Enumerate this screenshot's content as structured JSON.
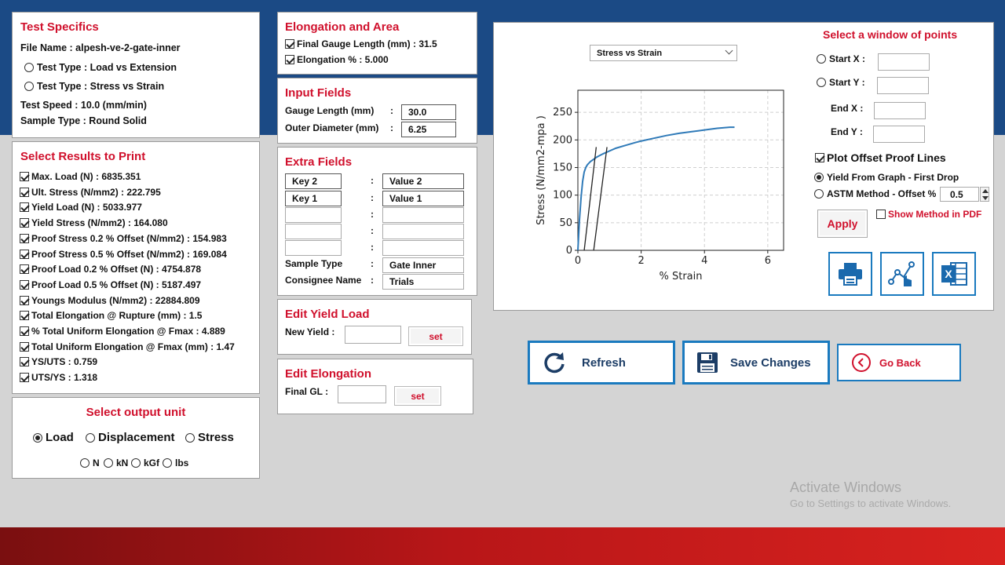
{
  "test_specifics": {
    "title": "Test Specifics",
    "file_name": "File Name : alpesh-ve-2-gate-inner",
    "test_type_load": "Test Type : Load vs Extension",
    "test_type_stress": "Test Type : Stress vs Strain",
    "test_speed": "Test Speed : 10.0 (mm/min)",
    "sample_type": "Sample Type : Round Solid"
  },
  "results": {
    "title": "Select Results to Print",
    "items": [
      {
        "label": "Max. Load (N) : 6835.351",
        "checked": true
      },
      {
        "label": "Ult. Stress (N/mm2) : 222.795",
        "checked": true
      },
      {
        "label": "Yield Load (N) : 5033.977",
        "checked": true
      },
      {
        "label": "Yield Stress (N/mm2) : 164.080",
        "checked": true
      },
      {
        "label": "Proof Stress 0.2 % Offset (N/mm2) : 154.983",
        "checked": true
      },
      {
        "label": "Proof Stress 0.5 % Offset (N/mm2) : 169.084",
        "checked": true
      },
      {
        "label": "Proof Load 0.2 % Offset (N) : 4754.878",
        "checked": true
      },
      {
        "label": "Proof Load 0.5 % Offset (N) : 5187.497",
        "checked": true
      },
      {
        "label": "Youngs Modulus (N/mm2) : 22884.809",
        "checked": true
      },
      {
        "label": "Total Elongation @ Rupture (mm) : 1.5",
        "checked": true
      },
      {
        "label": "% Total Uniform Elongation @ Fmax : 4.889",
        "checked": true
      },
      {
        "label": "Total Uniform Elongation @ Fmax (mm) : 1.47",
        "checked": true
      },
      {
        "label": "YS/UTS : 0.759",
        "checked": true
      },
      {
        "label": "UTS/YS : 1.318",
        "checked": true
      }
    ]
  },
  "output_unit": {
    "title": "Select output unit",
    "load": "Load",
    "displacement": "Displacement",
    "stress": "Stress",
    "selected": "Load",
    "unit_n": "N",
    "unit_kn": "kN",
    "unit_kgf": "kGf",
    "unit_lbs": "lbs"
  },
  "elongation_area": {
    "title": "Elongation and Area",
    "final_gauge": "Final Gauge Length (mm) : 31.5",
    "elongation": "Elongation % : 5.000"
  },
  "input_fields": {
    "title": "Input Fields",
    "gauge_label": "Gauge Length (mm)",
    "gauge_value": "30.0",
    "diameter_label": "Outer Diameter (mm)",
    "diameter_value": "6.25"
  },
  "extra_fields": {
    "title": "Extra Fields",
    "key2": "Key 2",
    "value2": "Value 2",
    "key1": "Key 1",
    "value1": "Value 1",
    "sample_type_label": "Sample Type",
    "sample_type_value": "Gate Inner",
    "consignee_label": "Consignee Name",
    "consignee_value": "Trials"
  },
  "edit_yield": {
    "title": "Edit Yield Load",
    "label": "New Yield :",
    "button": "set"
  },
  "edit_elongation": {
    "title": "Edit Elongation",
    "label": "Final GL :",
    "button": "set"
  },
  "graph": {
    "dropdown": "Stress vs Strain",
    "window_title": "Select a window of points",
    "start_x": "Start X :",
    "start_y": "Start Y :",
    "end_x": "End X :",
    "end_y": "End Y :",
    "plot_offset": "Plot Offset Proof Lines",
    "yield_first_drop": "Yield From Graph - First Drop",
    "astm_method": "ASTM Method - Offset %",
    "offset_value": "0.5",
    "apply": "Apply",
    "show_method": "Show Method in PDF"
  },
  "chart_data": {
    "type": "line",
    "xlabel": "% Strain",
    "ylabel": "Stress (N/mm2-mpa )",
    "xlim": [
      0,
      6.5
    ],
    "ylim": [
      0,
      290
    ],
    "x_ticks": [
      0,
      2,
      4,
      6
    ],
    "y_ticks": [
      0,
      50,
      100,
      150,
      200,
      250
    ],
    "grid": true,
    "series": [
      {
        "color": "#2f7ab8",
        "x": [
          0,
          0.05,
          0.1,
          0.15,
          0.2,
          0.25,
          0.3,
          0.4,
          0.5,
          0.6,
          0.8,
          1.0,
          1.2,
          1.5,
          1.8,
          2.0,
          2.4,
          2.8,
          3.2,
          3.6,
          4.0,
          4.4,
          4.8,
          4.95
        ],
        "y": [
          0,
          55,
          95,
          125,
          142,
          150,
          155,
          161,
          165,
          169,
          175,
          180,
          185,
          190,
          195,
          198,
          203,
          208,
          212,
          215,
          218,
          221,
          223,
          223
        ]
      },
      {
        "color": "#222222",
        "x": [
          0.2,
          0.58
        ],
        "y": [
          0,
          187
        ]
      },
      {
        "color": "#222222",
        "x": [
          0.5,
          0.92
        ],
        "y": [
          0,
          187
        ]
      }
    ]
  },
  "actions": {
    "refresh": "Refresh",
    "save": "Save Changes",
    "go_back": "Go Back"
  },
  "watermark": {
    "line1": "Activate Windows",
    "line2": "Go to Settings to activate Windows."
  }
}
